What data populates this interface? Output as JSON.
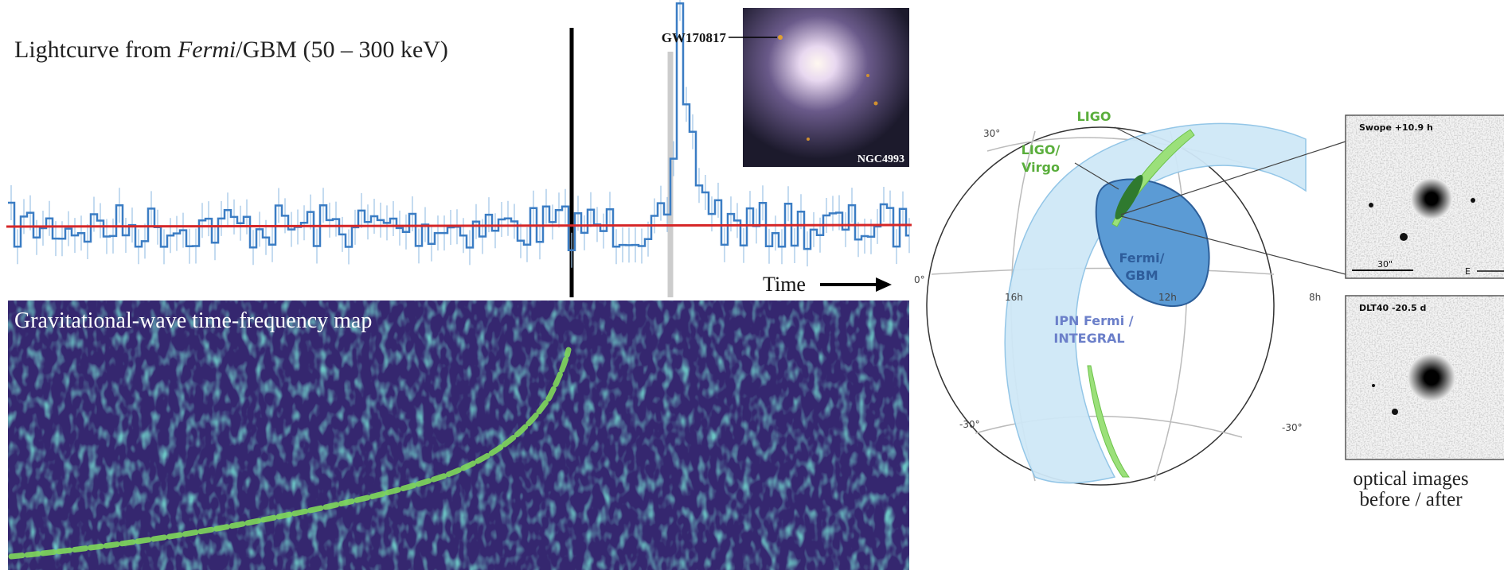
{
  "lightcurve": {
    "title": [
      "Lightcurve from ",
      "Fermi",
      "/GBM (50 – 300 keV)"
    ],
    "event_label": "GW170817",
    "galaxy_label": "NGC4993",
    "time_label": "Time"
  },
  "spectrogram": {
    "title": "Gravitational-wave time-frequency map"
  },
  "skymap": {
    "ligo": "LIGO",
    "ligo_virgo": [
      "LIGO/",
      "Virgo"
    ],
    "fermi_gbm": [
      "Fermi/",
      "GBM"
    ],
    "ipn": [
      "IPN Fermi /",
      "INTEGRAL"
    ],
    "dec_labels": [
      "30°",
      "0°",
      "-30°",
      "-30°"
    ],
    "ra_labels": [
      "16h",
      "12h",
      "8h"
    ]
  },
  "optical": {
    "panels": [
      {
        "label": "Swope +10.9 h",
        "scale": "30\"",
        "compass": "E"
      },
      {
        "label": "DLT40 -20.5 d"
      }
    ],
    "caption": [
      "optical images",
      "before / after"
    ]
  }
}
